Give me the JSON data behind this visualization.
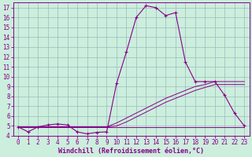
{
  "xlabel": "Windchill (Refroidissement éolien,°C)",
  "background_color": "#cceedd",
  "line_color": "#880088",
  "grid_color": "#99bbbb",
  "x_values": [
    0,
    1,
    2,
    3,
    4,
    5,
    6,
    7,
    8,
    9,
    10,
    11,
    12,
    13,
    14,
    15,
    16,
    17,
    18,
    19,
    20,
    21,
    22,
    23
  ],
  "y_main": [
    4.9,
    4.4,
    4.9,
    5.1,
    5.2,
    5.1,
    4.4,
    4.2,
    4.35,
    4.4,
    9.3,
    12.5,
    16.0,
    17.2,
    17.0,
    16.2,
    16.5,
    11.5,
    9.5,
    9.5,
    9.5,
    8.1,
    6.3,
    5.0
  ],
  "y_flat": [
    4.9,
    4.9,
    4.9,
    4.9,
    4.9,
    4.9,
    4.9,
    4.9,
    4.9,
    4.9,
    4.9,
    4.9,
    4.9,
    4.9,
    4.9,
    4.9,
    4.9,
    4.9,
    4.9,
    4.9,
    4.9,
    4.9,
    4.9,
    4.9
  ],
  "y_diag1": [
    4.9,
    4.9,
    4.9,
    4.9,
    4.9,
    4.9,
    4.9,
    4.9,
    4.9,
    4.9,
    5.3,
    5.8,
    6.3,
    6.8,
    7.3,
    7.8,
    8.2,
    8.6,
    9.0,
    9.2,
    9.5,
    9.5,
    9.5,
    9.5
  ],
  "y_diag2": [
    4.9,
    4.9,
    4.9,
    4.9,
    4.9,
    4.9,
    4.9,
    4.9,
    4.9,
    4.9,
    5.0,
    5.4,
    5.9,
    6.4,
    6.9,
    7.4,
    7.8,
    8.2,
    8.6,
    8.9,
    9.2,
    9.2,
    9.2,
    9.2
  ],
  "ylim": [
    4.0,
    17.5
  ],
  "xlim_min": -0.5,
  "xlim_max": 23.5,
  "yticks": [
    4,
    5,
    6,
    7,
    8,
    9,
    10,
    11,
    12,
    13,
    14,
    15,
    16,
    17
  ],
  "xticks": [
    0,
    1,
    2,
    3,
    4,
    5,
    6,
    7,
    8,
    9,
    10,
    11,
    12,
    13,
    14,
    15,
    16,
    17,
    18,
    19,
    20,
    21,
    22,
    23
  ],
  "tick_fontsize": 5.5,
  "xlabel_fontsize": 6.0,
  "figsize": [
    3.2,
    2.0
  ],
  "dpi": 100
}
